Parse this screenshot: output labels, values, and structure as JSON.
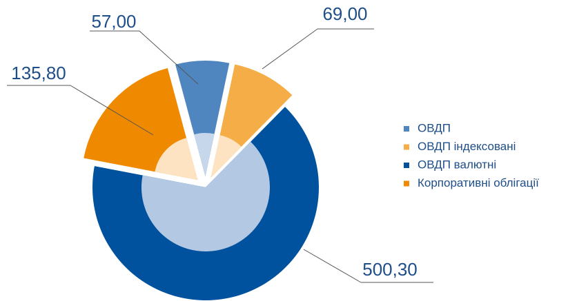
{
  "chart_data": {
    "type": "pie",
    "categories": [
      "ОВДП",
      "ОВДП індексовані",
      "ОВДП валютні",
      "Корпоративні облігації"
    ],
    "values": [
      57.0,
      69.0,
      500.3,
      135.8
    ],
    "value_labels": [
      "57,00",
      "69,00",
      "500,30",
      "135,80"
    ],
    "colors": [
      "#4f86c0",
      "#f5ad47",
      "#00519e",
      "#ef8a00"
    ],
    "inner_colors": [
      "#c6d7ec",
      "#fde3c2",
      "#b3c9e3",
      "#fde3c2"
    ],
    "legend": "right"
  }
}
